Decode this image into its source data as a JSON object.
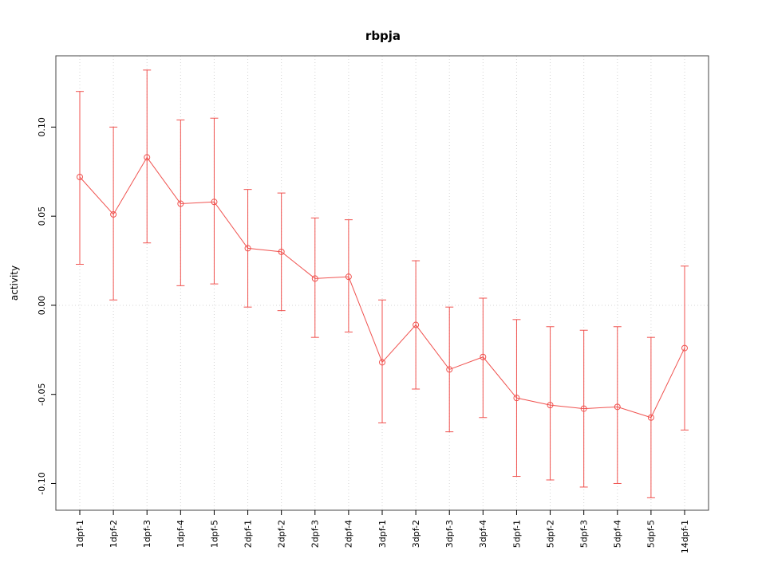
{
  "title": "rbpja",
  "chart_data": {
    "type": "line",
    "title": "rbpja",
    "xlabel": "",
    "ylabel": "activity",
    "legend": "none",
    "grid": "dotted vertical gridline at each category; dotted horizontal line at y=0",
    "point_style": "open-circle with vertical error bars and caps",
    "line_color": "#f0524f",
    "grid_color": "#d4d4d4",
    "frame_color": "#444444",
    "ylim": [
      -0.115,
      0.14
    ],
    "yticks": [
      -0.1,
      -0.05,
      0,
      0.05,
      0.1
    ],
    "ytick_labels": [
      "-0.10",
      "-0.05",
      "0.00",
      "0.05",
      "0.10"
    ],
    "categories": [
      "1dpf-1",
      "1dpf-2",
      "1dpf-3",
      "1dpf-4",
      "1dpf-5",
      "2dpf-1",
      "2dpf-2",
      "2dpf-3",
      "2dpf-4",
      "3dpf-1",
      "3dpf-2",
      "3dpf-3",
      "3dpf-4",
      "5dpf-1",
      "5dpf-2",
      "5dpf-3",
      "5dpf-4",
      "5dpf-5",
      "14dpf-1"
    ],
    "series": [
      {
        "name": "activity",
        "values": [
          0.072,
          0.051,
          0.083,
          0.057,
          0.058,
          0.032,
          0.03,
          0.015,
          0.016,
          -0.032,
          -0.011,
          -0.036,
          -0.029,
          -0.052,
          -0.056,
          -0.058,
          -0.057,
          -0.063,
          -0.024
        ],
        "upper": [
          0.12,
          0.1,
          0.132,
          0.104,
          0.105,
          0.065,
          0.063,
          0.049,
          0.048,
          0.003,
          0.025,
          -0.001,
          0.004,
          -0.008,
          -0.012,
          -0.014,
          -0.012,
          -0.018,
          0.022
        ],
        "lower": [
          0.023,
          0.003,
          0.035,
          0.011,
          0.012,
          -0.001,
          -0.003,
          -0.018,
          -0.015,
          -0.066,
          -0.047,
          -0.071,
          -0.063,
          -0.096,
          -0.098,
          -0.102,
          -0.1,
          -0.108,
          -0.07
        ]
      }
    ]
  }
}
